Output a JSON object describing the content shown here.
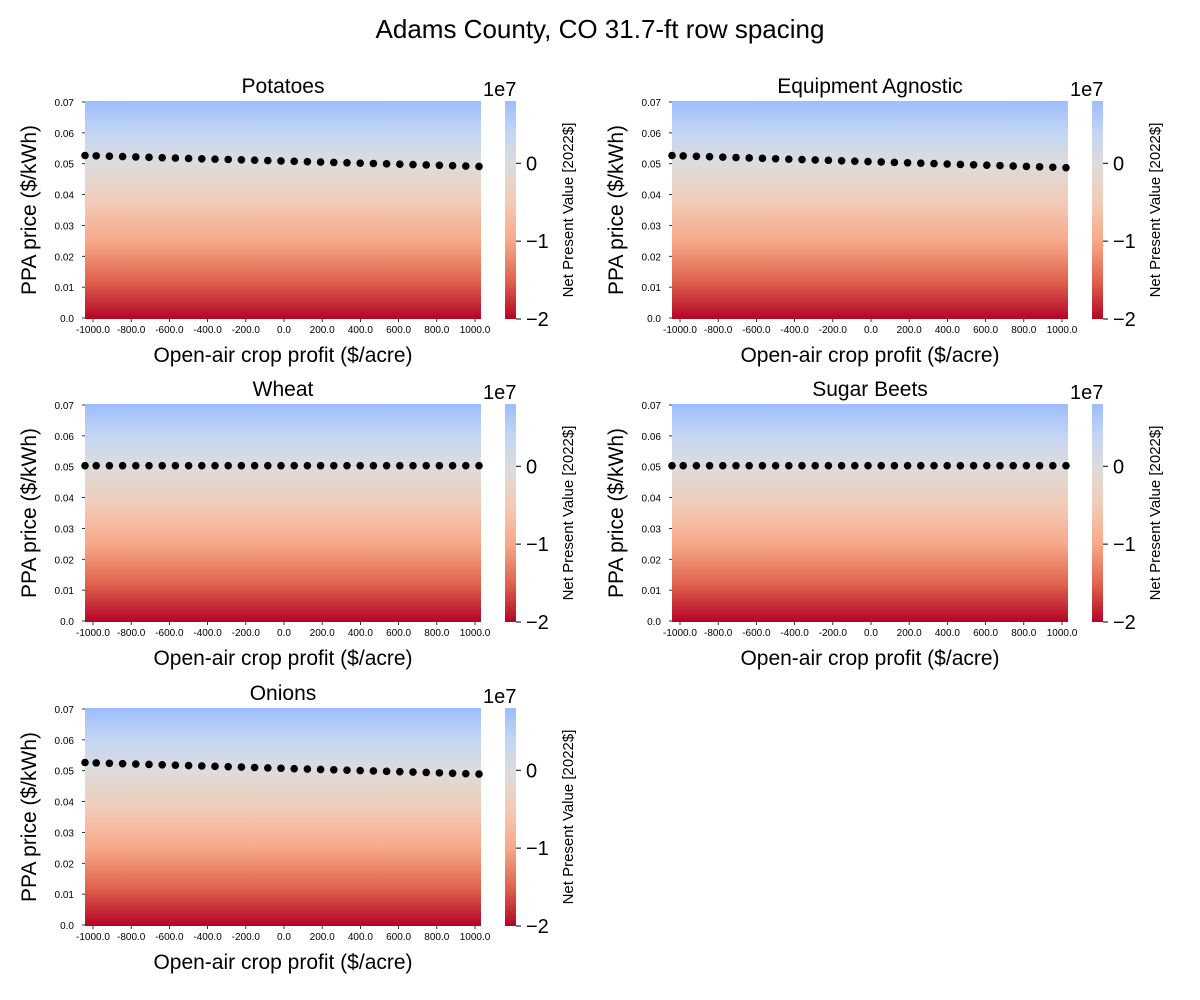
{
  "figure": {
    "title": "Adams County, CO 31.7-ft row spacing"
  },
  "colormap": {
    "name": "coolwarm_r",
    "stops": [
      {
        "value": -20000000,
        "color": "#b40426"
      },
      {
        "value": -15000000,
        "color": "#e0654f"
      },
      {
        "value": -10000000,
        "color": "#f7a889"
      },
      {
        "value": -5000000,
        "color": "#f2cbb7"
      },
      {
        "value": 0,
        "color": "#dddcdc"
      },
      {
        "value": 4000000,
        "color": "#c3d5f4"
      },
      {
        "value": 8000000,
        "color": "#9dbdff"
      }
    ]
  },
  "chart_data": [
    {
      "type": "heatmap",
      "title": "Potatoes",
      "xlabel": "Open-air crop profit ($/acre)",
      "ylabel": "PPA price ($/kWh)",
      "x_ticks": [
        "-1000.0",
        "-800.0",
        "-600.0",
        "-400.0",
        "-200.0",
        "0.0",
        "200.0",
        "400.0",
        "600.0",
        "800.0",
        "1000.0"
      ],
      "y_ticks": [
        "0.0",
        "0.01",
        "0.02",
        "0.03",
        "0.04",
        "0.05",
        "0.06",
        "0.07"
      ],
      "xlim": [
        -1000,
        1000
      ],
      "ylim": [
        0,
        0.07
      ],
      "colorbar": {
        "label": "Net Present Value [2022$]",
        "scale": "1e7",
        "ticks": [
          "0",
          "−1",
          "−2"
        ],
        "tick_values": [
          0,
          -10000000,
          -20000000
        ],
        "range": [
          -20000000,
          8000000
        ]
      },
      "npv_range": [
        -20000000,
        8000000
      ],
      "breakeven": {
        "x": [
          -1000,
          1000
        ],
        "y": [
          0.0525,
          0.049
        ]
      }
    },
    {
      "type": "heatmap",
      "title": "Equipment Agnostic",
      "xlabel": "Open-air crop profit ($/acre)",
      "ylabel": "PPA price ($/kWh)",
      "x_ticks": [
        "-1000.0",
        "-800.0",
        "-600.0",
        "-400.0",
        "-200.0",
        "0.0",
        "200.0",
        "400.0",
        "600.0",
        "800.0",
        "1000.0"
      ],
      "y_ticks": [
        "0.0",
        "0.01",
        "0.02",
        "0.03",
        "0.04",
        "0.05",
        "0.06",
        "0.07"
      ],
      "xlim": [
        -1000,
        1000
      ],
      "ylim": [
        0,
        0.07
      ],
      "colorbar": {
        "label": "Net Present Value [2022$]",
        "scale": "1e7",
        "ticks": [
          "0",
          "−1",
          "−2"
        ],
        "tick_values": [
          0,
          -10000000,
          -20000000
        ],
        "range": [
          -20000000,
          8000000
        ]
      },
      "npv_range": [
        -20000000,
        8000000
      ],
      "breakeven": {
        "x": [
          -1000,
          1000
        ],
        "y": [
          0.0525,
          0.0486
        ]
      }
    },
    {
      "type": "heatmap",
      "title": "Wheat",
      "xlabel": "Open-air crop profit ($/acre)",
      "ylabel": "PPA price ($/kWh)",
      "x_ticks": [
        "-1000.0",
        "-800.0",
        "-600.0",
        "-400.0",
        "-200.0",
        "0.0",
        "200.0",
        "400.0",
        "600.0",
        "800.0",
        "1000.0"
      ],
      "y_ticks": [
        "0.0",
        "0.01",
        "0.02",
        "0.03",
        "0.04",
        "0.05",
        "0.06",
        "0.07"
      ],
      "xlim": [
        -1000,
        1000
      ],
      "ylim": [
        0,
        0.07
      ],
      "colorbar": {
        "label": "Net Present Value [2022$]",
        "scale": "1e7",
        "ticks": [
          "0",
          "−1",
          "−2"
        ],
        "tick_values": [
          0,
          -10000000,
          -20000000
        ],
        "range": [
          -20000000,
          8000000
        ]
      },
      "npv_range": [
        -20000000,
        8000000
      ],
      "breakeven": {
        "x": [
          -1000,
          1000
        ],
        "y": [
          0.0502,
          0.0502
        ]
      }
    },
    {
      "type": "heatmap",
      "title": "Sugar Beets",
      "xlabel": "Open-air crop profit ($/acre)",
      "ylabel": "PPA price ($/kWh)",
      "x_ticks": [
        "-1000.0",
        "-800.0",
        "-600.0",
        "-400.0",
        "-200.0",
        "0.0",
        "200.0",
        "400.0",
        "600.0",
        "800.0",
        "1000.0"
      ],
      "y_ticks": [
        "0.0",
        "0.01",
        "0.02",
        "0.03",
        "0.04",
        "0.05",
        "0.06",
        "0.07"
      ],
      "xlim": [
        -1000,
        1000
      ],
      "ylim": [
        0,
        0.07
      ],
      "colorbar": {
        "label": "Net Present Value [2022$]",
        "scale": "1e7",
        "ticks": [
          "0",
          "−1",
          "−2"
        ],
        "tick_values": [
          0,
          -10000000,
          -20000000
        ],
        "range": [
          -20000000,
          8000000
        ]
      },
      "npv_range": [
        -20000000,
        8000000
      ],
      "breakeven": {
        "x": [
          -1000,
          1000
        ],
        "y": [
          0.0502,
          0.0502
        ]
      }
    },
    {
      "type": "heatmap",
      "title": "Onions",
      "xlabel": "Open-air crop profit ($/acre)",
      "ylabel": "PPA price ($/kWh)",
      "x_ticks": [
        "-1000.0",
        "-800.0",
        "-600.0",
        "-400.0",
        "-200.0",
        "0.0",
        "200.0",
        "400.0",
        "600.0",
        "800.0",
        "1000.0"
      ],
      "y_ticks": [
        "0.0",
        "0.01",
        "0.02",
        "0.03",
        "0.04",
        "0.05",
        "0.06",
        "0.07"
      ],
      "xlim": [
        -1000,
        1000
      ],
      "ylim": [
        0,
        0.07
      ],
      "colorbar": {
        "label": "Net Present Value [2022$]",
        "scale": "1e7",
        "ticks": [
          "0",
          "−1",
          "−2"
        ],
        "tick_values": [
          0,
          -10000000,
          -20000000
        ],
        "range": [
          -20000000,
          8000000
        ]
      },
      "npv_range": [
        -20000000,
        8000000
      ],
      "breakeven": {
        "x": [
          -1000,
          1000
        ],
        "y": [
          0.0525,
          0.0488
        ]
      }
    }
  ]
}
